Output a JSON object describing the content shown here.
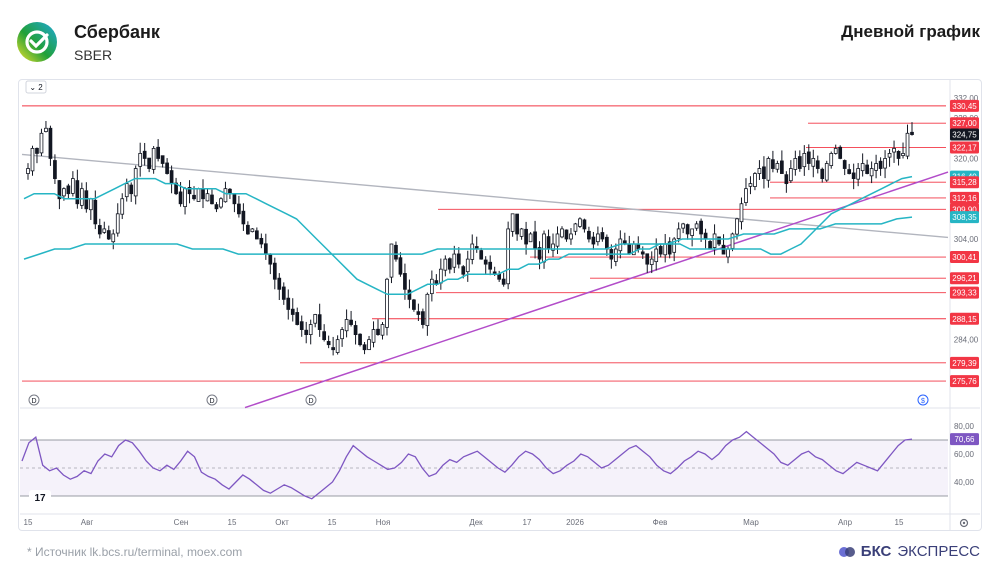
{
  "header": {
    "company": "Сбербанк",
    "ticker": "SBER",
    "chart_title": "Дневной график",
    "legend_count": "2"
  },
  "footer": {
    "source": "Источник lk.bcs.ru/terminal, moex.com",
    "brand_bold": "БКС",
    "brand_rest": "ЭКСПРЕСС"
  },
  "colors": {
    "up": "#131722",
    "down": "#131722",
    "ma_fast": "#26b5c4",
    "ma_slow": "#26b5c4",
    "level": "#f23645",
    "trend_gray": "#b2b5be",
    "trend_purple": "#b24cc9",
    "rsi": "#7e57c2"
  },
  "chart_data": {
    "type": "candlestick",
    "price_axis_ticks": [
      332,
      328,
      320,
      304,
      284
    ],
    "x_labels": [
      "15",
      "Авг",
      "Сен",
      "15",
      "Окт",
      "15",
      "Ноя",
      "Дек",
      "17",
      "2026",
      "Фев",
      "Мар",
      "Апр",
      "15"
    ],
    "price_labels": [
      {
        "value": "330,45",
        "color": "#f23645"
      },
      {
        "value": "327,00",
        "color": "#f23645"
      },
      {
        "value": "324,75",
        "color": "#131722"
      },
      {
        "value": "322,17",
        "color": "#f23645"
      },
      {
        "value": "316,40",
        "color": "#26b5c4"
      },
      {
        "value": "315,28",
        "color": "#f23645"
      },
      {
        "value": "312,16",
        "color": "#f23645"
      },
      {
        "value": "309,90",
        "color": "#f23645"
      },
      {
        "value": "308,35",
        "color": "#26b5c4"
      },
      {
        "value": "300,41",
        "color": "#f23645"
      },
      {
        "value": "296,21",
        "color": "#f23645"
      },
      {
        "value": "293,33",
        "color": "#f23645"
      },
      {
        "value": "288,15",
        "color": "#f23645"
      },
      {
        "value": "279,39",
        "color": "#f23645"
      },
      {
        "value": "275,76",
        "color": "#f23645"
      }
    ],
    "levels": [
      330.45,
      327.0,
      322.17,
      315.28,
      312.16,
      309.9,
      300.41,
      296.21,
      293.33,
      288.15,
      279.39,
      275.76
    ],
    "close_series": [
      318,
      322,
      321,
      325,
      326,
      320,
      316,
      312,
      314,
      313,
      316,
      311,
      314,
      310,
      312,
      307,
      305,
      306,
      304,
      305,
      309,
      312,
      315,
      313,
      318,
      321,
      320,
      318,
      322,
      320,
      319,
      317,
      315,
      313,
      311,
      314,
      313,
      312,
      314,
      312,
      313,
      311,
      310,
      312,
      314,
      313,
      311,
      309,
      307,
      305,
      306,
      304,
      303,
      301,
      299,
      296,
      294,
      292,
      290,
      289,
      287,
      286,
      285,
      287,
      289,
      286,
      284,
      283,
      282,
      284,
      286,
      288,
      287,
      285,
      283,
      282,
      284,
      286,
      285,
      287,
      296,
      303,
      300,
      297,
      294,
      292,
      290,
      289,
      287,
      293,
      296,
      295,
      298,
      300,
      298,
      301,
      299,
      297,
      300,
      303,
      302,
      300,
      299,
      298,
      297,
      296,
      295,
      306,
      309,
      305,
      306,
      303,
      305,
      302,
      300,
      305,
      302,
      303,
      305,
      306,
      304,
      305,
      307,
      308,
      306,
      304,
      303,
      305,
      304,
      302,
      300,
      302,
      304,
      303,
      301,
      303,
      302,
      301,
      299,
      300,
      302,
      301,
      303,
      301,
      304,
      306,
      307,
      305,
      306,
      307,
      305,
      304,
      302,
      305,
      303,
      301,
      302,
      305,
      308,
      311,
      314,
      315,
      317,
      318,
      316,
      320,
      318,
      319,
      317,
      315,
      318,
      320,
      318,
      321,
      319,
      320,
      318,
      316,
      319,
      321,
      322,
      320,
      318,
      317,
      316,
      318,
      319,
      317,
      318,
      319,
      318,
      320,
      321,
      322,
      320,
      321,
      325,
      324.75
    ],
    "ma_fast": [
      312,
      313,
      313,
      313,
      312,
      312,
      312,
      312,
      313,
      314,
      315,
      316,
      316,
      316,
      315,
      315,
      314,
      314,
      314,
      314,
      313,
      313,
      313,
      312,
      311,
      310,
      309,
      308,
      306,
      304,
      302,
      300,
      298,
      296,
      295,
      294,
      293,
      293,
      293,
      294,
      295,
      295,
      296,
      296,
      297,
      297,
      297,
      297,
      298,
      298,
      299,
      299,
      300,
      300,
      301,
      301,
      301,
      301,
      301,
      301,
      301,
      302,
      302,
      303,
      303,
      303,
      302,
      302,
      302,
      302,
      302,
      302,
      302,
      302,
      301,
      301,
      302,
      303,
      305,
      307,
      309,
      310,
      311,
      312,
      313,
      314,
      315,
      316,
      316.4
    ],
    "ma_slow": [
      300,
      301,
      302,
      302,
      303,
      303,
      303,
      303,
      303,
      303,
      303,
      302,
      302,
      302,
      301,
      301,
      301,
      301,
      301,
      301,
      301,
      301,
      301,
      301,
      301,
      301,
      301,
      302,
      302,
      302,
      302,
      302,
      302,
      302,
      302,
      302,
      302,
      302,
      302,
      303,
      303,
      303,
      303,
      304,
      304,
      304,
      304,
      305,
      305,
      305,
      306,
      306,
      306,
      307,
      307,
      307,
      307,
      308,
      308.35
    ],
    "rsi": {
      "axis_ticks": [
        80,
        60,
        40
      ],
      "current_label": "70,66",
      "values": [
        55,
        68,
        72,
        52,
        48,
        50,
        45,
        42,
        44,
        48,
        46,
        55,
        60,
        58,
        66,
        70,
        68,
        62,
        55,
        50,
        48,
        52,
        49,
        55,
        62,
        58,
        47,
        44,
        42,
        38,
        35,
        40,
        45,
        42,
        38,
        34,
        32,
        35,
        38,
        36,
        33,
        30,
        28,
        32,
        36,
        40,
        48,
        58,
        66,
        62,
        58,
        55,
        52,
        49,
        50,
        54,
        60,
        58,
        50,
        44,
        46,
        52,
        56,
        54,
        58,
        60,
        62,
        58,
        54,
        50,
        47,
        52,
        58,
        62,
        60,
        56,
        50,
        46,
        48,
        52,
        55,
        60,
        58,
        54,
        50,
        52,
        56,
        60,
        64,
        66,
        62,
        58,
        52,
        48,
        46,
        50,
        55,
        58,
        62,
        60,
        56,
        60,
        66,
        70,
        72,
        76,
        72,
        68,
        64,
        60,
        54,
        52,
        56,
        60,
        62,
        58,
        56,
        52,
        48,
        46,
        50,
        54,
        52,
        50,
        48,
        54,
        60,
        66,
        70,
        70.66
      ]
    }
  }
}
